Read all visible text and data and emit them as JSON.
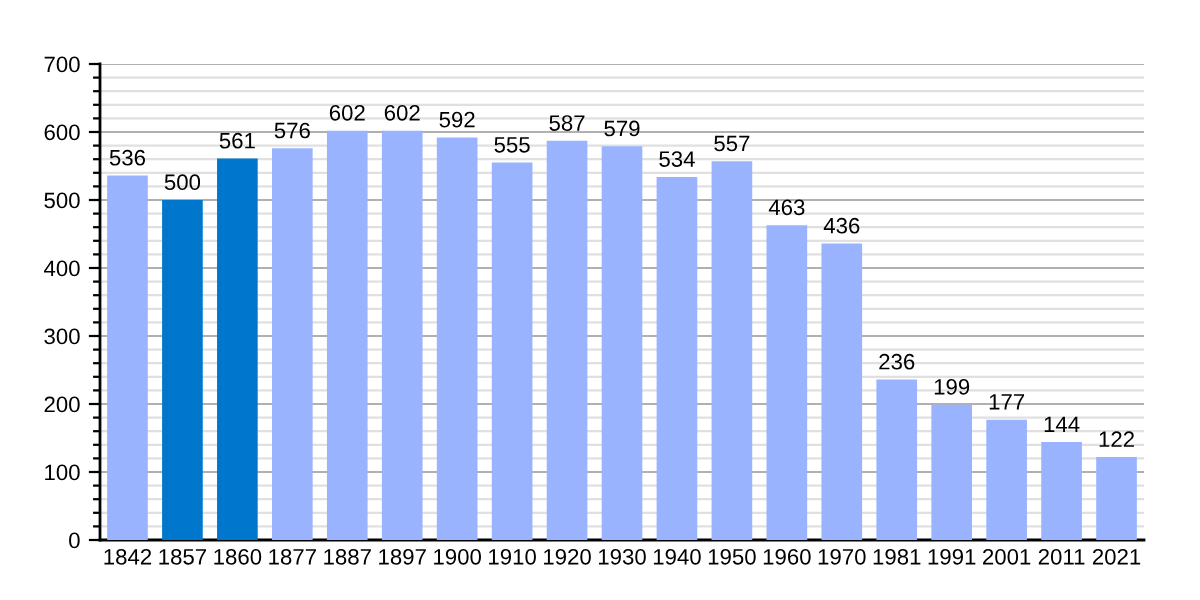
{
  "chart_data": {
    "type": "bar",
    "categories": [
      "1842",
      "1857",
      "1860",
      "1877",
      "1887",
      "1897",
      "1900",
      "1910",
      "1920",
      "1930",
      "1940",
      "1950",
      "1960",
      "1970",
      "1981",
      "1991",
      "2001",
      "2011",
      "2021"
    ],
    "values": [
      536,
      500,
      561,
      576,
      602,
      602,
      592,
      555,
      587,
      579,
      534,
      557,
      463,
      436,
      236,
      199,
      177,
      144,
      122
    ],
    "colors": [
      "#99b3ff",
      "#0077cc",
      "#0077cc",
      "#99b3ff",
      "#99b3ff",
      "#99b3ff",
      "#99b3ff",
      "#99b3ff",
      "#99b3ff",
      "#99b3ff",
      "#99b3ff",
      "#99b3ff",
      "#99b3ff",
      "#99b3ff",
      "#99b3ff",
      "#99b3ff",
      "#99b3ff",
      "#99b3ff",
      "#99b3ff"
    ],
    "ylim": [
      0,
      700
    ],
    "yticks": [
      0,
      {
        "value": 20,
        "label": null
      },
      {
        "value": 40,
        "label": null
      },
      {
        "value": 60,
        "label": null
      },
      {
        "value": 80,
        "label": null
      },
      100,
      {
        "value": 120,
        "label": null
      },
      {
        "value": 140,
        "label": null
      },
      {
        "value": 160,
        "label": null
      },
      {
        "value": 180,
        "label": null
      },
      200,
      {
        "value": 220,
        "label": null
      },
      {
        "value": 240,
        "label": null
      },
      {
        "value": 260,
        "label": null
      },
      {
        "value": 280,
        "label": null
      },
      300,
      {
        "value": 320,
        "label": null
      },
      {
        "value": 340,
        "label": null
      },
      {
        "value": 360,
        "label": null
      },
      {
        "value": 380,
        "label": null
      },
      400,
      {
        "value": 420,
        "label": null
      },
      {
        "value": 440,
        "label": null
      },
      {
        "value": 460,
        "label": null
      },
      {
        "value": 480,
        "label": null
      },
      500,
      {
        "value": 520,
        "label": null
      },
      {
        "value": 540,
        "label": null
      },
      {
        "value": 560,
        "label": null
      },
      {
        "value": 580,
        "label": null
      },
      600,
      {
        "value": 620,
        "label": null
      },
      {
        "value": 640,
        "label": null
      },
      {
        "value": 660,
        "label": null
      },
      {
        "value": 680,
        "label": null
      },
      700
    ],
    "grid": "y",
    "data_labels": true
  }
}
